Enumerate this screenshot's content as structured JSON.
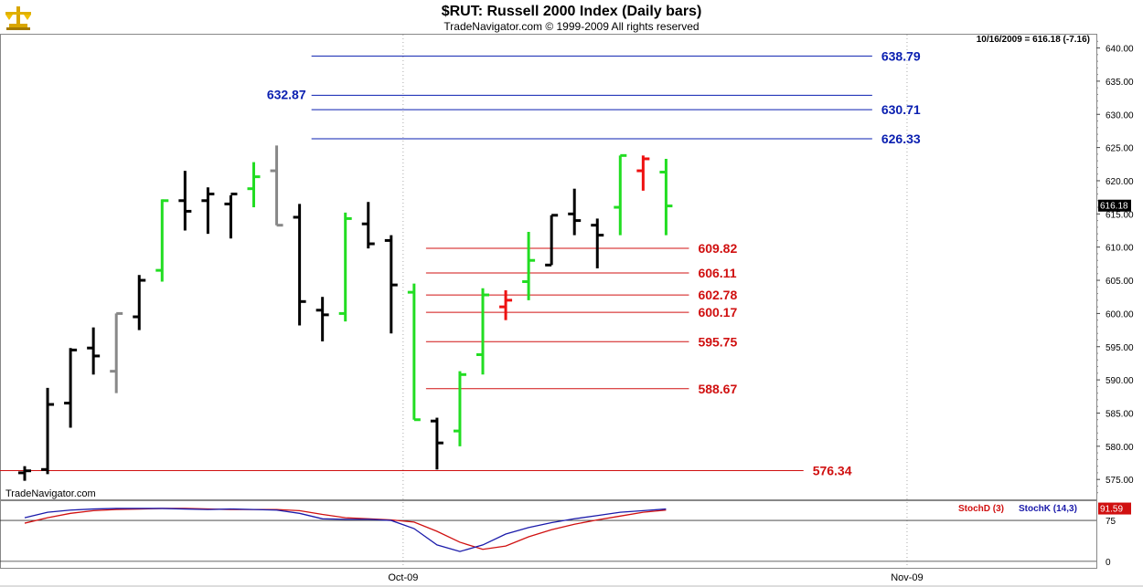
{
  "header": {
    "title": "$RUT:  Russell 2000 Index  (Daily bars)",
    "subtitle": "TradeNavigator.com © 1999-2009 All rights reserved",
    "status": "10/16/2009 = 616.18 (-7.16)",
    "watermark": "TradeNavigator.com"
  },
  "colors": {
    "up": "#22dd22",
    "down": "#000000",
    "gray": "#888888",
    "red": "#ee1111",
    "resistance": "#0a1fb0",
    "support": "#d01010",
    "stochD": "#d01010",
    "stochK": "#1a1aaa"
  },
  "chart_data": [
    {
      "type": "ohlc",
      "title": "$RUT:  Russell 2000 Index  (Daily bars)",
      "ylim": [
        572,
        642
      ],
      "yticks": [
        "575.00",
        "580.00",
        "585.00",
        "590.00",
        "595.00",
        "600.00",
        "605.00",
        "610.00",
        "615.00",
        "620.00",
        "625.00",
        "630.00",
        "635.00",
        "640.00"
      ],
      "ytick_values": [
        575,
        580,
        585,
        590,
        595,
        600,
        605,
        610,
        615,
        620,
        625,
        630,
        635,
        640
      ],
      "x_labels": [
        {
          "label": "Oct-09",
          "index": 17
        },
        {
          "label": "Nov-09",
          "index": 39
        }
      ],
      "current_price_label": "616.18",
      "current_price": 616.18,
      "bars": [
        {
          "o": 576.0,
          "h": 577.0,
          "l": 574.8,
          "c": 576.3,
          "color": "down"
        },
        {
          "o": 576.5,
          "h": 588.8,
          "l": 575.8,
          "c": 586.3,
          "color": "down"
        },
        {
          "o": 586.5,
          "h": 594.8,
          "l": 582.8,
          "c": 594.5,
          "color": "down"
        },
        {
          "o": 594.8,
          "h": 597.9,
          "l": 590.8,
          "c": 593.6,
          "color": "down"
        },
        {
          "o": 591.3,
          "h": 600.0,
          "l": 588.0,
          "c": 600.0,
          "color": "gray"
        },
        {
          "o": 599.5,
          "h": 605.8,
          "l": 597.5,
          "c": 605.0,
          "color": "down"
        },
        {
          "o": 606.5,
          "h": 617.2,
          "l": 604.8,
          "c": 617.0,
          "color": "up"
        },
        {
          "o": 617.0,
          "h": 621.5,
          "l": 612.5,
          "c": 615.4,
          "color": "down"
        },
        {
          "o": 617.0,
          "h": 619.0,
          "l": 612.0,
          "c": 618.0,
          "color": "down"
        },
        {
          "o": 616.5,
          "h": 617.8,
          "l": 611.3,
          "c": 618.0,
          "color": "down"
        },
        {
          "o": 618.8,
          "h": 622.8,
          "l": 616.0,
          "c": 620.6,
          "color": "up"
        },
        {
          "o": 621.5,
          "h": 625.3,
          "l": 613.3,
          "c": 613.3,
          "color": "gray"
        },
        {
          "o": 614.5,
          "h": 616.5,
          "l": 598.2,
          "c": 601.8,
          "color": "down"
        },
        {
          "o": 600.5,
          "h": 602.5,
          "l": 595.8,
          "c": 599.8,
          "color": "down"
        },
        {
          "o": 600.0,
          "h": 615.2,
          "l": 598.8,
          "c": 614.3,
          "color": "up"
        },
        {
          "o": 613.5,
          "h": 616.8,
          "l": 609.8,
          "c": 610.5,
          "color": "down"
        },
        {
          "o": 611.0,
          "h": 611.8,
          "l": 597.0,
          "c": 604.3,
          "color": "down"
        },
        {
          "o": 603.2,
          "h": 604.5,
          "l": 584.0,
          "c": 584.0,
          "color": "up"
        },
        {
          "o": 583.8,
          "h": 584.3,
          "l": 576.5,
          "c": 580.5,
          "color": "down"
        },
        {
          "o": 582.3,
          "h": 591.3,
          "l": 580.0,
          "c": 590.8,
          "color": "up"
        },
        {
          "o": 593.8,
          "h": 603.8,
          "l": 590.8,
          "c": 602.8,
          "color": "up"
        },
        {
          "o": 601.0,
          "h": 603.5,
          "l": 599.0,
          "c": 602.0,
          "color": "red"
        },
        {
          "o": 604.8,
          "h": 612.3,
          "l": 602.0,
          "c": 608.0,
          "color": "up"
        },
        {
          "o": 607.3,
          "h": 614.8,
          "l": 607.3,
          "c": 614.8,
          "color": "down"
        },
        {
          "o": 615.0,
          "h": 618.8,
          "l": 611.8,
          "c": 614.0,
          "color": "down"
        },
        {
          "o": 613.3,
          "h": 614.3,
          "l": 606.8,
          "c": 611.8,
          "color": "down"
        },
        {
          "o": 616.0,
          "h": 623.8,
          "l": 611.8,
          "c": 623.8,
          "color": "up"
        },
        {
          "o": 621.5,
          "h": 623.8,
          "l": 618.5,
          "c": 623.3,
          "color": "red"
        },
        {
          "o": 621.3,
          "h": 623.3,
          "l": 611.8,
          "c": 616.2,
          "color": "up"
        }
      ],
      "levels": [
        {
          "value": 638.79,
          "label": "638.79",
          "kind": "resistance",
          "from": 13,
          "to": 37,
          "label_side": "right"
        },
        {
          "value": 632.87,
          "label": "632.87",
          "kind": "resistance",
          "from": 13,
          "to": 37,
          "label_side": "left"
        },
        {
          "value": 630.71,
          "label": "630.71",
          "kind": "resistance",
          "from": 13,
          "to": 37,
          "label_side": "right"
        },
        {
          "value": 626.33,
          "label": "626.33",
          "kind": "resistance",
          "from": 13,
          "to": 37,
          "label_side": "right"
        },
        {
          "value": 609.82,
          "label": "609.82",
          "kind": "support",
          "from": 18,
          "to": 29,
          "label_side": "right"
        },
        {
          "value": 606.11,
          "label": "606.11",
          "kind": "support",
          "from": 18,
          "to": 29,
          "label_side": "right"
        },
        {
          "value": 602.78,
          "label": "602.78",
          "kind": "support",
          "from": 18,
          "to": 29,
          "label_side": "right"
        },
        {
          "value": 600.17,
          "label": "600.17",
          "kind": "support",
          "from": 18,
          "to": 29,
          "label_side": "right"
        },
        {
          "value": 595.75,
          "label": "595.75",
          "kind": "support",
          "from": 18,
          "to": 29,
          "label_side": "right"
        },
        {
          "value": 588.67,
          "label": "588.67",
          "kind": "support",
          "from": 18,
          "to": 29,
          "label_side": "right"
        },
        {
          "value": 576.34,
          "label": "576.34",
          "kind": "support",
          "from": -1,
          "to": 34,
          "label_side": "right"
        }
      ]
    },
    {
      "type": "line",
      "title": "Stochastic",
      "ylim": [
        -12,
        112
      ],
      "yticks": [
        "0",
        "75"
      ],
      "ytick_values": [
        0,
        75
      ],
      "current_label": "91.59",
      "legend": [
        "StochD (3)",
        "StochK (14,3)"
      ],
      "series": [
        {
          "name": "StochD (3)",
          "color": "stochD",
          "values": [
            70,
            80,
            88,
            93,
            95,
            96,
            97,
            97,
            96,
            95,
            95,
            95,
            93,
            86,
            80,
            78,
            76,
            72,
            55,
            35,
            22,
            28,
            45,
            58,
            68,
            76,
            83,
            90,
            94
          ]
        },
        {
          "name": "StochK (14,3)",
          "color": "stochK",
          "values": [
            80,
            90,
            94,
            96,
            97,
            97,
            97,
            96,
            95,
            96,
            95,
            94,
            88,
            78,
            77,
            77,
            75,
            60,
            30,
            18,
            30,
            50,
            62,
            71,
            78,
            84,
            90,
            93,
            96
          ]
        }
      ]
    }
  ]
}
